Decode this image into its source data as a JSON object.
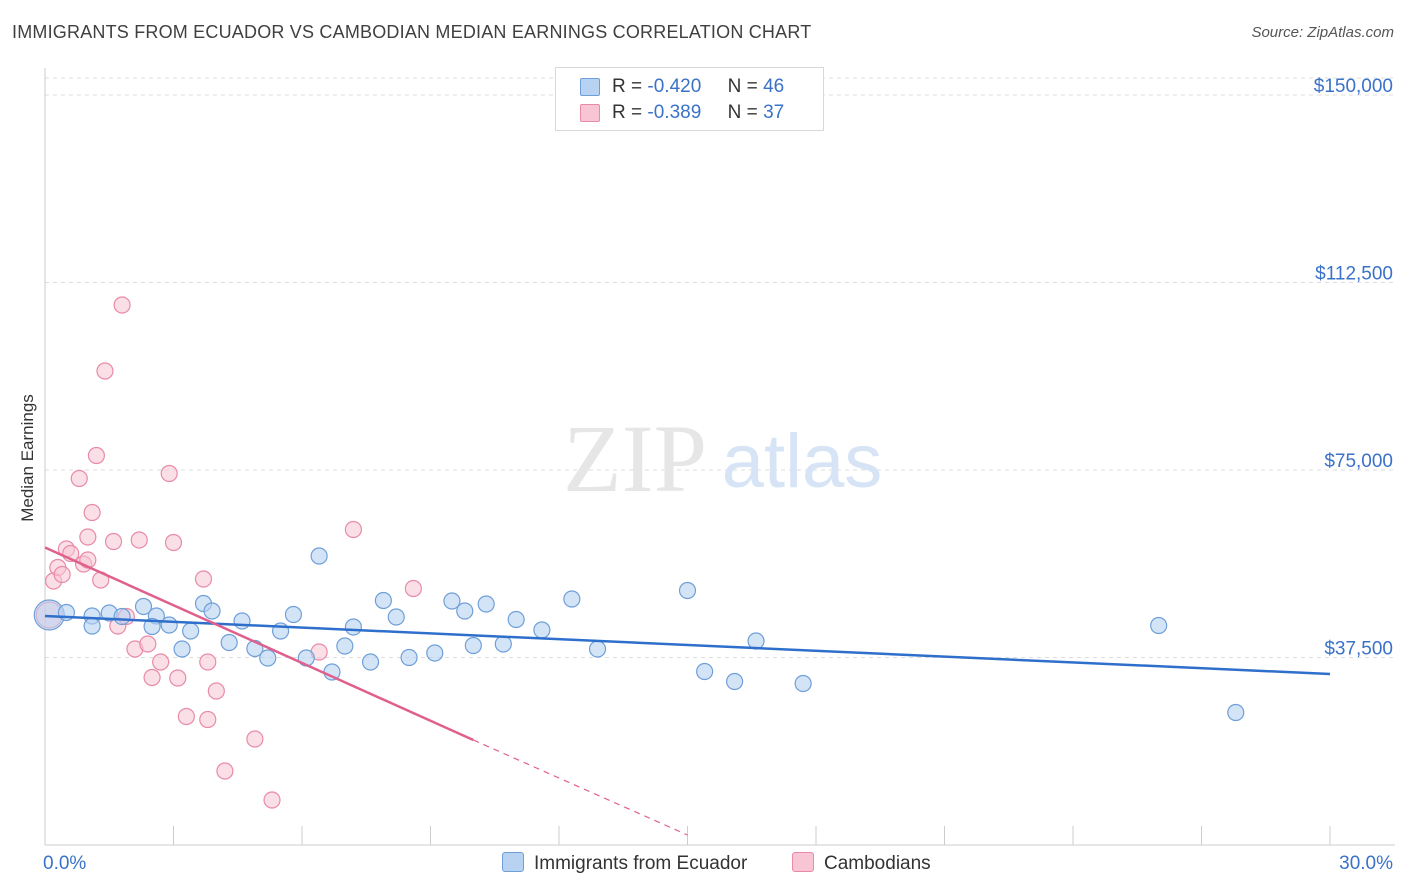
{
  "title": "IMMIGRANTS FROM ECUADOR VS CAMBODIAN MEDIAN EARNINGS CORRELATION CHART",
  "source": "Source: ZipAtlas.com",
  "watermark": {
    "zip": "ZIP",
    "atlas": "atlas"
  },
  "legend_stats": [
    {
      "r_label": "R =",
      "r_value": "-0.420",
      "n_label": "N =",
      "n_value": "46"
    },
    {
      "r_label": "R =",
      "r_value": "-0.389",
      "n_label": "N =",
      "n_value": "37"
    }
  ],
  "legend_series": [
    "Immigrants from Ecuador",
    "Cambodians"
  ],
  "colors": {
    "ecuador_fill": "#b8d2f2",
    "ecuador_stroke": "#6f9fd8",
    "ecuador_line": "#2f6fcc",
    "cambodian_fill": "#f8c5d4",
    "cambodian_stroke": "#e88aa8",
    "cambodian_line": "#e0608d",
    "tick_label": "#3a72c8",
    "grid": "#dddddd"
  },
  "chart_data": {
    "type": "scatter",
    "xlabel": "",
    "ylabel": "Median Earnings",
    "xlim": [
      0,
      30
    ],
    "ylim": [
      0,
      155000
    ],
    "x_tick_labels": [
      "0.0%",
      "30.0%"
    ],
    "y_ticks": [
      37500,
      75000,
      112500,
      150000
    ],
    "y_tick_labels": [
      "$37,500",
      "$75,000",
      "$112,500",
      "$150,000"
    ],
    "grid": "horizontal dashed",
    "legend_placement": "bottom",
    "series": [
      {
        "name": "Immigrants from Ecuador",
        "trend": {
          "x": [
            0,
            30
          ],
          "y": [
            45800,
            34200
          ]
        },
        "points": [
          [
            0.1,
            46000
          ],
          [
            0.5,
            46500
          ],
          [
            1.1,
            45800
          ],
          [
            1.1,
            43800
          ],
          [
            1.5,
            46400
          ],
          [
            1.8,
            45700
          ],
          [
            2.6,
            45800
          ],
          [
            2.3,
            47700
          ],
          [
            2.5,
            43700
          ],
          [
            2.9,
            44000
          ],
          [
            3.2,
            39200
          ],
          [
            3.4,
            42800
          ],
          [
            3.7,
            48300
          ],
          [
            3.9,
            46800
          ],
          [
            4.3,
            40500
          ],
          [
            4.6,
            44800
          ],
          [
            4.9,
            39300
          ],
          [
            5.2,
            37400
          ],
          [
            5.5,
            42800
          ],
          [
            5.8,
            46100
          ],
          [
            6.1,
            37400
          ],
          [
            6.4,
            57800
          ],
          [
            6.7,
            34600
          ],
          [
            7.0,
            39800
          ],
          [
            7.2,
            43600
          ],
          [
            7.6,
            36600
          ],
          [
            7.9,
            48900
          ],
          [
            8.2,
            45600
          ],
          [
            8.5,
            37500
          ],
          [
            9.1,
            38400
          ],
          [
            9.5,
            48800
          ],
          [
            9.8,
            46800
          ],
          [
            10.0,
            39900
          ],
          [
            10.3,
            48200
          ],
          [
            10.7,
            40200
          ],
          [
            11.0,
            45100
          ],
          [
            11.6,
            43000
          ],
          [
            12.3,
            49200
          ],
          [
            12.9,
            39200
          ],
          [
            15.0,
            50900
          ],
          [
            15.4,
            34700
          ],
          [
            16.1,
            32700
          ],
          [
            16.6,
            40800
          ],
          [
            17.7,
            32300
          ],
          [
            26.0,
            43900
          ],
          [
            27.8,
            26500
          ]
        ]
      },
      {
        "name": "Cambodians",
        "trend": {
          "x": [
            0,
            10
          ],
          "y": [
            59500,
            21000
          ]
        },
        "trend_extension": {
          "x": [
            10,
            15
          ],
          "y": [
            21000,
            2000
          ]
        },
        "points": [
          [
            0.1,
            46000
          ],
          [
            0.2,
            52800
          ],
          [
            0.3,
            55500
          ],
          [
            0.4,
            54100
          ],
          [
            0.5,
            59200
          ],
          [
            0.6,
            58300
          ],
          [
            0.8,
            73300
          ],
          [
            0.9,
            56200
          ],
          [
            1.0,
            57000
          ],
          [
            1.0,
            61600
          ],
          [
            1.1,
            66500
          ],
          [
            1.2,
            77900
          ],
          [
            1.3,
            53000
          ],
          [
            1.4,
            94800
          ],
          [
            1.6,
            60700
          ],
          [
            1.7,
            43800
          ],
          [
            1.8,
            108000
          ],
          [
            1.9,
            45700
          ],
          [
            2.1,
            39200
          ],
          [
            2.2,
            61000
          ],
          [
            2.4,
            40200
          ],
          [
            2.5,
            33500
          ],
          [
            2.7,
            36600
          ],
          [
            2.9,
            74300
          ],
          [
            3.0,
            60500
          ],
          [
            3.1,
            33400
          ],
          [
            3.3,
            25700
          ],
          [
            3.7,
            53200
          ],
          [
            3.8,
            36600
          ],
          [
            3.8,
            25100
          ],
          [
            4.0,
            30800
          ],
          [
            4.2,
            14800
          ],
          [
            4.9,
            21200
          ],
          [
            5.3,
            9000
          ],
          [
            6.4,
            38600
          ],
          [
            7.2,
            63100
          ],
          [
            8.6,
            51300
          ]
        ]
      }
    ]
  }
}
